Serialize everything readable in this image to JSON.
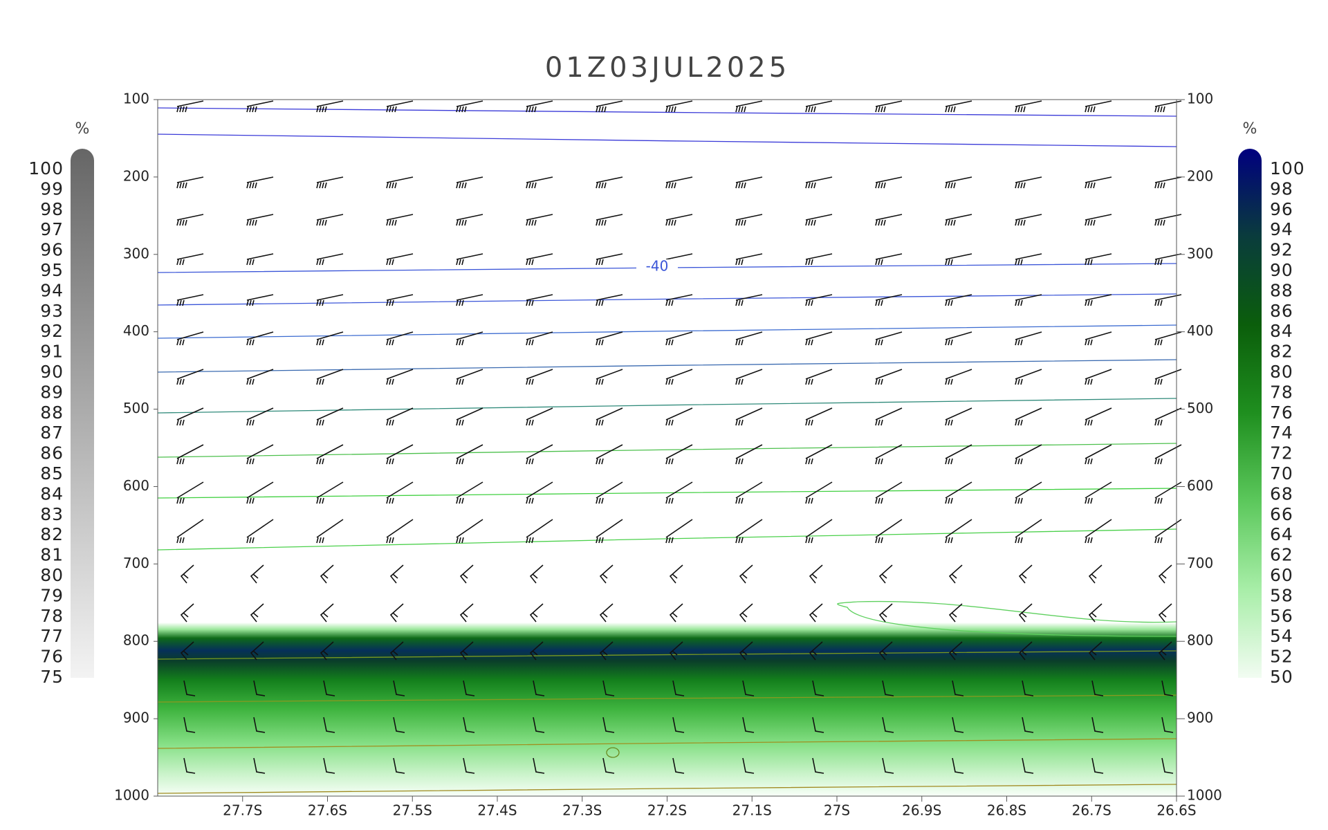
{
  "chart_data": {
    "type": "cross-section",
    "title": "01Z03JUL2025",
    "ylim": [
      100,
      1000
    ],
    "yticks": [
      100,
      200,
      300,
      400,
      500,
      600,
      700,
      800,
      900,
      1000
    ],
    "xlim": [
      -27.8,
      -26.6
    ],
    "xticks": [
      {
        "value": -27.7,
        "label": "27.7S"
      },
      {
        "value": -27.6,
        "label": "27.6S"
      },
      {
        "value": -27.5,
        "label": "27.5S"
      },
      {
        "value": -27.4,
        "label": "27.4S"
      },
      {
        "value": -27.3,
        "label": "27.3S"
      },
      {
        "value": -27.2,
        "label": "27.2S"
      },
      {
        "value": -27.1,
        "label": "27.1S"
      },
      {
        "value": -27.0,
        "label": "27S"
      },
      {
        "value": -26.9,
        "label": "26.9S"
      },
      {
        "value": -26.8,
        "label": "26.8S"
      },
      {
        "value": -26.7,
        "label": "26.7S"
      },
      {
        "value": -26.6,
        "label": "26.6S"
      }
    ],
    "contour_labels": [
      -40
    ],
    "colorbars": [
      {
        "unit": "%",
        "lim": [
          75,
          100
        ],
        "colors": [
          "#f3f3f3",
          "#666666"
        ],
        "ticks": [
          75,
          76,
          77,
          78,
          79,
          80,
          81,
          82,
          83,
          84,
          85,
          86,
          87,
          88,
          89,
          90,
          91,
          92,
          93,
          94,
          95,
          96,
          97,
          98,
          99,
          100
        ]
      },
      {
        "unit": "%",
        "lim": [
          50,
          100
        ],
        "colors": [
          "#f2fcf2",
          "#a8eea8",
          "#5cc85c",
          "#1f8f1f",
          "#0b5e0b",
          "#0a3c3c",
          "#00007f"
        ],
        "ticks": [
          50,
          52,
          54,
          56,
          58,
          60,
          62,
          64,
          66,
          68,
          70,
          72,
          74,
          76,
          78,
          80,
          82,
          84,
          86,
          88,
          90,
          92,
          94,
          96,
          98,
          100
        ]
      }
    ]
  }
}
